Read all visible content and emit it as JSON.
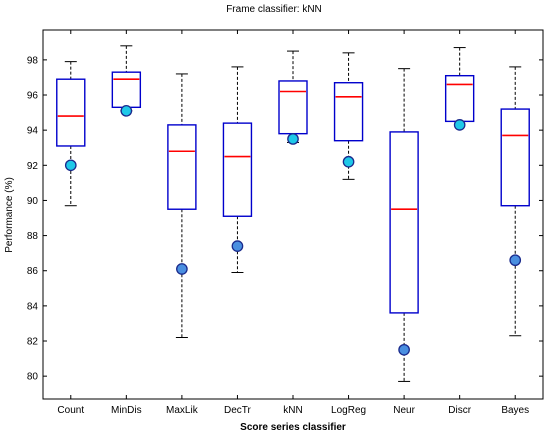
{
  "chart_data": {
    "type": "boxplot",
    "title": "Frame classifier: kNN",
    "xlabel": "Score series classifier",
    "ylabel": "Performance (%)",
    "ylim": [
      78.7,
      99.7
    ],
    "yticks": [
      80,
      82,
      84,
      86,
      88,
      90,
      92,
      94,
      96,
      98
    ],
    "grid": false,
    "colors": {
      "box": "#0000cc",
      "median": "#ff0000",
      "whisker": "#000000",
      "marker_fill": "#1ec8e8",
      "marker_fill_dark": "#4a8fe0",
      "marker_stroke": "#1a2a8c"
    },
    "categories": [
      "Count",
      "MinDis",
      "MaxLik",
      "DecTr",
      "kNN",
      "LogReg",
      "Neur",
      "Discr",
      "Bayes"
    ],
    "boxes": [
      {
        "whisker_low": 89.7,
        "q1": 93.1,
        "median": 94.8,
        "q3": 96.9,
        "whisker_high": 97.9,
        "marker": 92.0
      },
      {
        "whisker_low": 95.1,
        "q1": 95.3,
        "median": 96.9,
        "q3": 97.3,
        "whisker_high": 98.8,
        "marker": 95.1
      },
      {
        "whisker_low": 82.2,
        "q1": 89.5,
        "median": 92.8,
        "q3": 94.3,
        "whisker_high": 97.2,
        "marker": 86.1
      },
      {
        "whisker_low": 85.9,
        "q1": 89.1,
        "median": 92.5,
        "q3": 94.4,
        "whisker_high": 97.6,
        "marker": 87.4
      },
      {
        "whisker_low": 93.3,
        "q1": 93.8,
        "median": 96.2,
        "q3": 96.8,
        "whisker_high": 98.5,
        "marker": 93.5
      },
      {
        "whisker_low": 91.2,
        "q1": 93.4,
        "median": 95.9,
        "q3": 96.7,
        "whisker_high": 98.4,
        "marker": 92.2
      },
      {
        "whisker_low": 79.7,
        "q1": 83.6,
        "median": 89.5,
        "q3": 93.9,
        "whisker_high": 97.5,
        "marker": 81.5
      },
      {
        "whisker_low": 94.5,
        "q1": 94.5,
        "median": 96.6,
        "q3": 97.1,
        "whisker_high": 98.7,
        "marker": 94.3
      },
      {
        "whisker_low": 82.3,
        "q1": 89.7,
        "median": 93.7,
        "q3": 95.2,
        "whisker_high": 97.6,
        "marker": 86.6
      }
    ]
  }
}
